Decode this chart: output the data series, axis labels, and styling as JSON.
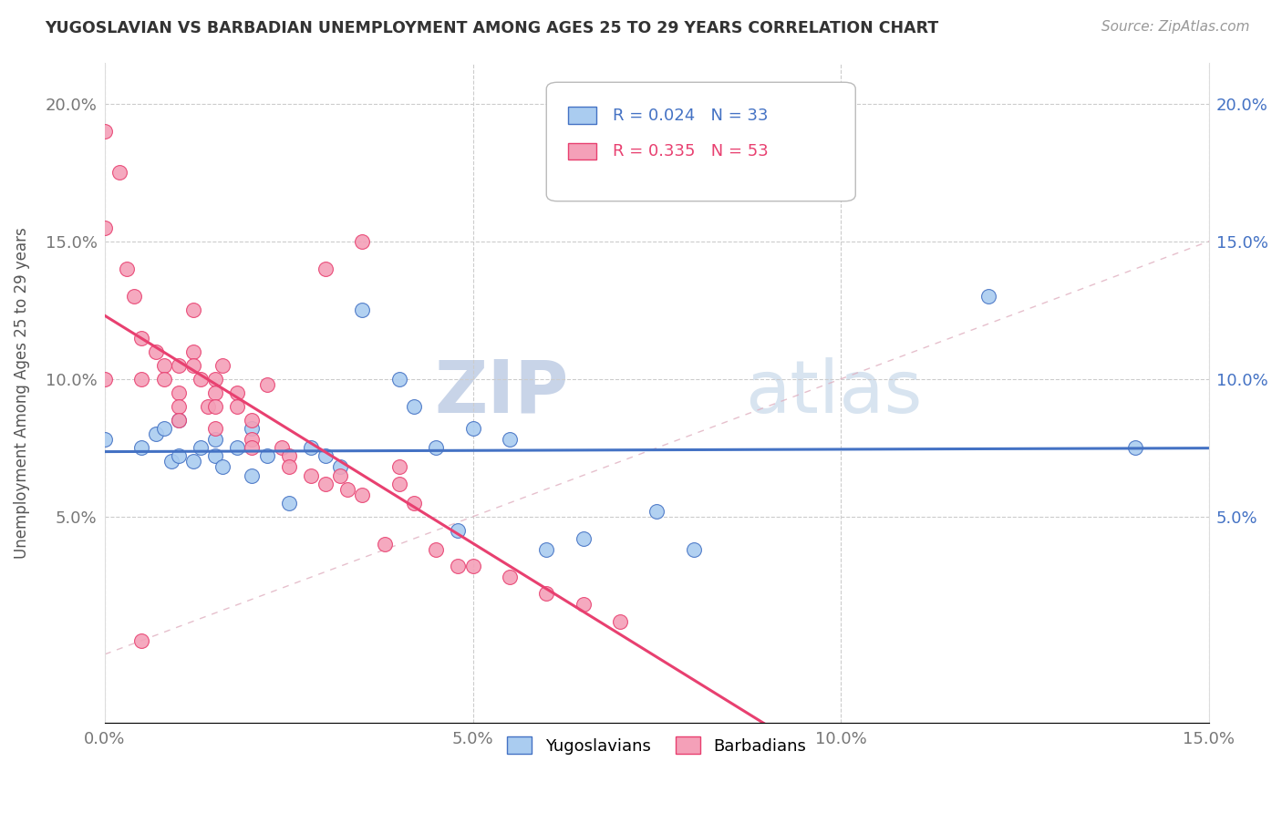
{
  "title": "YUGOSLAVIAN VS BARBADIAN UNEMPLOYMENT AMONG AGES 25 TO 29 YEARS CORRELATION CHART",
  "source": "Source: ZipAtlas.com",
  "ylabel": "Unemployment Among Ages 25 to 29 years",
  "xlim": [
    0.0,
    0.15
  ],
  "ylim": [
    -0.025,
    0.215
  ],
  "xticks": [
    0.0,
    0.05,
    0.1,
    0.15
  ],
  "yticks": [
    0.05,
    0.1,
    0.15,
    0.2
  ],
  "xticklabels": [
    "0.0%",
    "5.0%",
    "10.0%",
    "15.0%"
  ],
  "yticklabels": [
    "5.0%",
    "10.0%",
    "15.0%",
    "20.0%"
  ],
  "legend_yugoslavians_label": "Yugoslavians",
  "legend_barbadians_label": "Barbadians",
  "r_yugoslavians": "R = 0.024",
  "n_yugoslavians": "N = 33",
  "r_barbadians": "R = 0.335",
  "n_barbadians": "N = 53",
  "color_yugoslavians": "#aaccf0",
  "color_barbadians": "#f4a0b8",
  "color_line_yugoslavians": "#4472c4",
  "color_line_barbadians": "#e84070",
  "color_diagonal": "#e0b0c0",
  "watermark_zip": "ZIP",
  "watermark_atlas": "atlas",
  "yugoslavians_x": [
    0.0,
    0.005,
    0.007,
    0.008,
    0.009,
    0.01,
    0.01,
    0.012,
    0.013,
    0.015,
    0.015,
    0.016,
    0.018,
    0.02,
    0.02,
    0.022,
    0.025,
    0.028,
    0.03,
    0.032,
    0.035,
    0.04,
    0.042,
    0.045,
    0.048,
    0.05,
    0.055,
    0.06,
    0.065,
    0.075,
    0.08,
    0.12,
    0.14
  ],
  "yugoslavians_y": [
    0.078,
    0.075,
    0.08,
    0.082,
    0.07,
    0.072,
    0.085,
    0.07,
    0.075,
    0.072,
    0.078,
    0.068,
    0.075,
    0.065,
    0.082,
    0.072,
    0.055,
    0.075,
    0.072,
    0.068,
    0.125,
    0.1,
    0.09,
    0.075,
    0.045,
    0.082,
    0.078,
    0.038,
    0.042,
    0.052,
    0.038,
    0.13,
    0.075
  ],
  "barbadians_x": [
    0.005,
    0.0,
    0.0,
    0.0,
    0.002,
    0.003,
    0.004,
    0.005,
    0.005,
    0.007,
    0.008,
    0.008,
    0.01,
    0.01,
    0.01,
    0.01,
    0.012,
    0.012,
    0.012,
    0.013,
    0.014,
    0.015,
    0.015,
    0.015,
    0.015,
    0.016,
    0.018,
    0.018,
    0.02,
    0.02,
    0.02,
    0.022,
    0.024,
    0.025,
    0.025,
    0.028,
    0.03,
    0.03,
    0.032,
    0.033,
    0.035,
    0.035,
    0.038,
    0.04,
    0.04,
    0.042,
    0.045,
    0.048,
    0.05,
    0.055,
    0.06,
    0.065,
    0.07
  ],
  "barbadians_y": [
    0.005,
    0.19,
    0.155,
    0.1,
    0.175,
    0.14,
    0.13,
    0.115,
    0.1,
    0.11,
    0.105,
    0.1,
    0.105,
    0.095,
    0.09,
    0.085,
    0.125,
    0.11,
    0.105,
    0.1,
    0.09,
    0.1,
    0.095,
    0.09,
    0.082,
    0.105,
    0.095,
    0.09,
    0.085,
    0.078,
    0.075,
    0.098,
    0.075,
    0.072,
    0.068,
    0.065,
    0.14,
    0.062,
    0.065,
    0.06,
    0.15,
    0.058,
    0.04,
    0.068,
    0.062,
    0.055,
    0.038,
    0.032,
    0.032,
    0.028,
    0.022,
    0.018,
    0.012
  ]
}
